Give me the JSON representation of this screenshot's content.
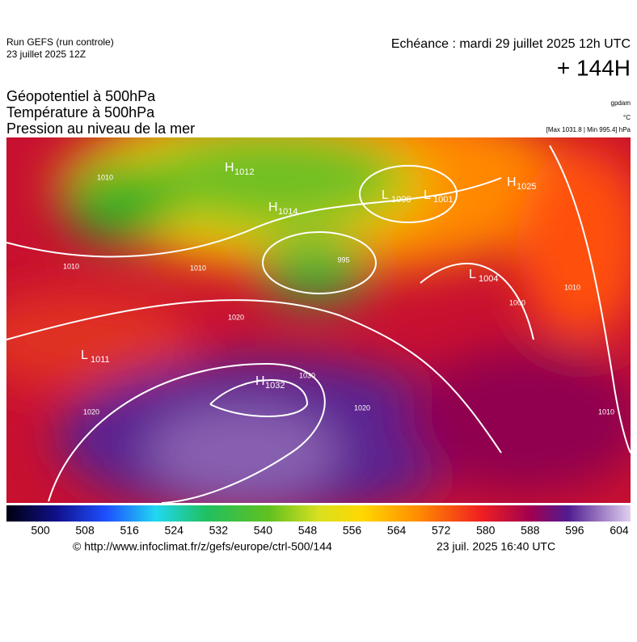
{
  "header": {
    "run": "Run GEFS (run controle)",
    "run_date": "23 juillet 2025 12Z",
    "valid": "Echéance : mardi 29 juillet 2025 12h UTC",
    "lead": "+ 144H"
  },
  "titles": [
    "Géopotentiel à 500hPa",
    "Température à 500hPa",
    "Pression au niveau de la mer"
  ],
  "units": {
    "geopotential": "gpdam",
    "temperature": "°C",
    "pressure": "[Max 1031.8 | Min 995.4] hPa"
  },
  "centers": [
    {
      "letter": "H",
      "value": "1012"
    },
    {
      "letter": "H",
      "value": "1014"
    },
    {
      "letter": "L",
      "value": "1000"
    },
    {
      "letter": "L",
      "value": "1001"
    },
    {
      "letter": "H",
      "value": "1025"
    },
    {
      "letter": "L",
      "value": "1004"
    },
    {
      "letter": "L",
      "value": "1011"
    },
    {
      "letter": "H",
      "value": "1032"
    }
  ],
  "isobar_labels": [
    "1010",
    "1010",
    "1020",
    "1030",
    "1020",
    "1010",
    "1010",
    "1020",
    "995",
    "1000",
    "1010"
  ],
  "colorbar": {
    "ticks": [
      500,
      508,
      516,
      524,
      532,
      540,
      548,
      556,
      564,
      572,
      580,
      588,
      596,
      604
    ]
  },
  "footer": {
    "url": "© http://www.infoclimat.fr/z/gefs/europe/ctrl-500/144",
    "generated": "23 juil. 2025 16:40 UTC"
  }
}
